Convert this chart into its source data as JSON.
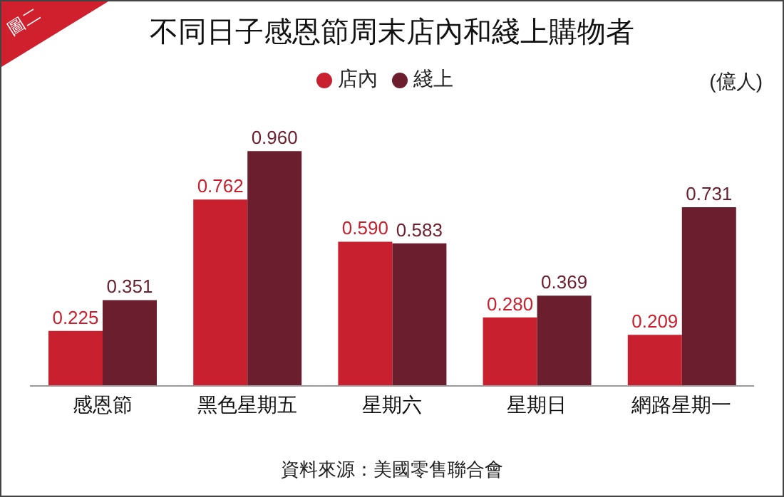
{
  "chart_data": {
    "type": "bar",
    "title": "不同日子感恩節周末店內和綫上購物者",
    "ylabel": "(億人)",
    "annotations": [
      "圖二",
      "資料來源：美國零售聯合會"
    ],
    "categories": [
      "感恩節",
      "黑色星期五",
      "星期六",
      "星期日",
      "網路星期一"
    ],
    "series": [
      {
        "name": "店內",
        "color": "#c8202e",
        "values": [
          0.225,
          0.762,
          0.59,
          0.28,
          0.209
        ],
        "value_labels": [
          "0.225",
          "0.762",
          "0.590",
          "0.280",
          "0.209"
        ]
      },
      {
        "name": "綫上",
        "color": "#6b1f2e",
        "values": [
          0.351,
          0.96,
          0.583,
          0.369,
          0.731
        ],
        "value_labels": [
          "0.351",
          "0.960",
          "0.583",
          "0.369",
          "0.731"
        ]
      }
    ],
    "legend": "top",
    "grid": false
  }
}
